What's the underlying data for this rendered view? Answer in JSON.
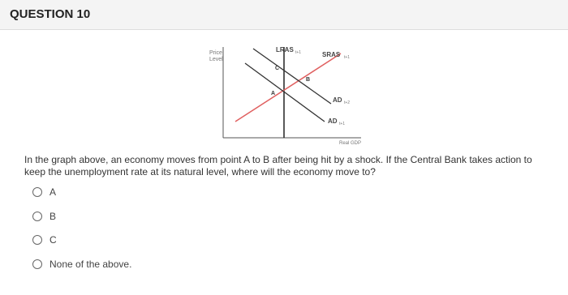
{
  "header": {
    "title": "QUESTION 10"
  },
  "graph": {
    "y_axis_label": [
      "Price",
      "Level"
    ],
    "x_axis_label": "Real GDP",
    "curves": [
      {
        "label": "LRAS",
        "subscript": "t+1"
      },
      {
        "label": "SRAS",
        "subscript": "t+1"
      },
      {
        "label": "AD",
        "subscript": "t+2"
      },
      {
        "label": "AD",
        "subscript": "t+1"
      }
    ],
    "points": [
      "A",
      "B",
      "C"
    ]
  },
  "question": {
    "text": "In the graph above, an economy moves from point A to B after being hit by a shock. If the Central Bank takes action to keep the unemployment rate at its natural level, where will the economy move to?",
    "options": [
      "A",
      "B",
      "C",
      "None of the above."
    ]
  }
}
